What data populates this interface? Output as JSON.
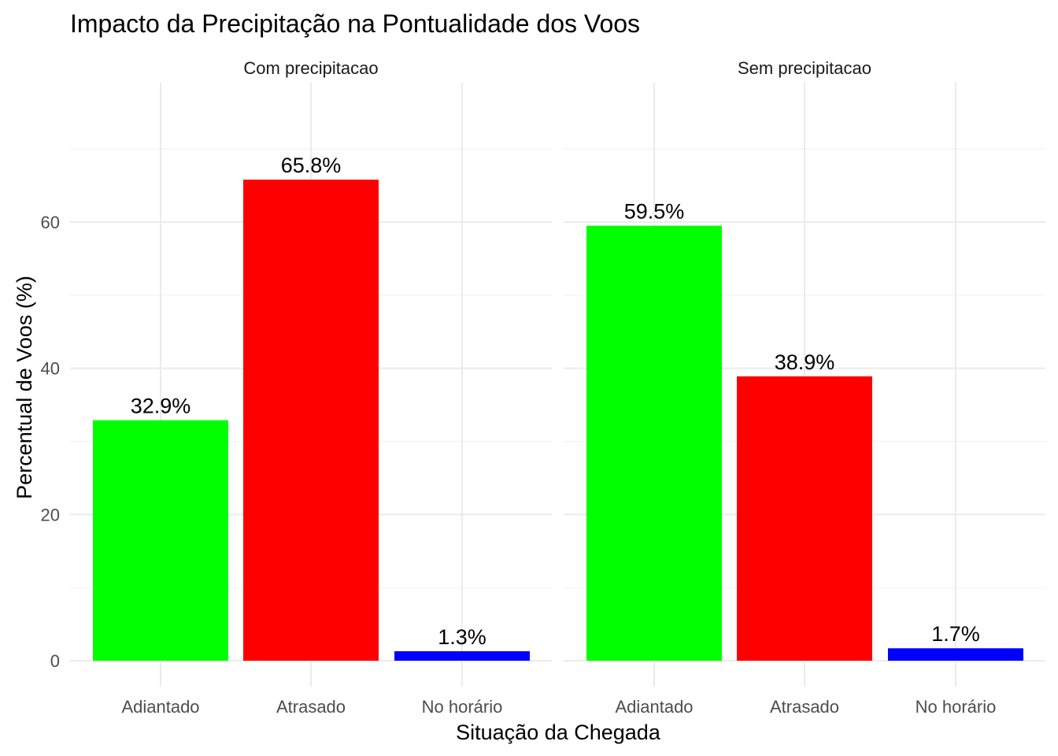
{
  "chart_data": {
    "type": "bar",
    "title": "Impacto da Precipitação na Pontualidade dos Voos",
    "xlabel": "Situação da Chegada",
    "ylabel": "Percentual de Voos (%)",
    "ylim": [
      0,
      70
    ],
    "yticks": [
      0,
      20,
      40,
      60
    ],
    "grid": true,
    "categories": [
      "Adiantado",
      "Atrasado",
      "No horário"
    ],
    "colors": {
      "Adiantado": "#00FF00",
      "Atrasado": "#FF0000",
      "No horário": "#0000FF"
    },
    "panels": [
      {
        "name": "Com precipitacao",
        "values": [
          32.9,
          65.8,
          1.3
        ],
        "labels": [
          "32.9%",
          "65.8%",
          "1.3%"
        ]
      },
      {
        "name": "Sem precipitacao",
        "values": [
          59.5,
          38.9,
          1.7
        ],
        "labels": [
          "59.5%",
          "38.9%",
          "1.7%"
        ]
      }
    ]
  }
}
